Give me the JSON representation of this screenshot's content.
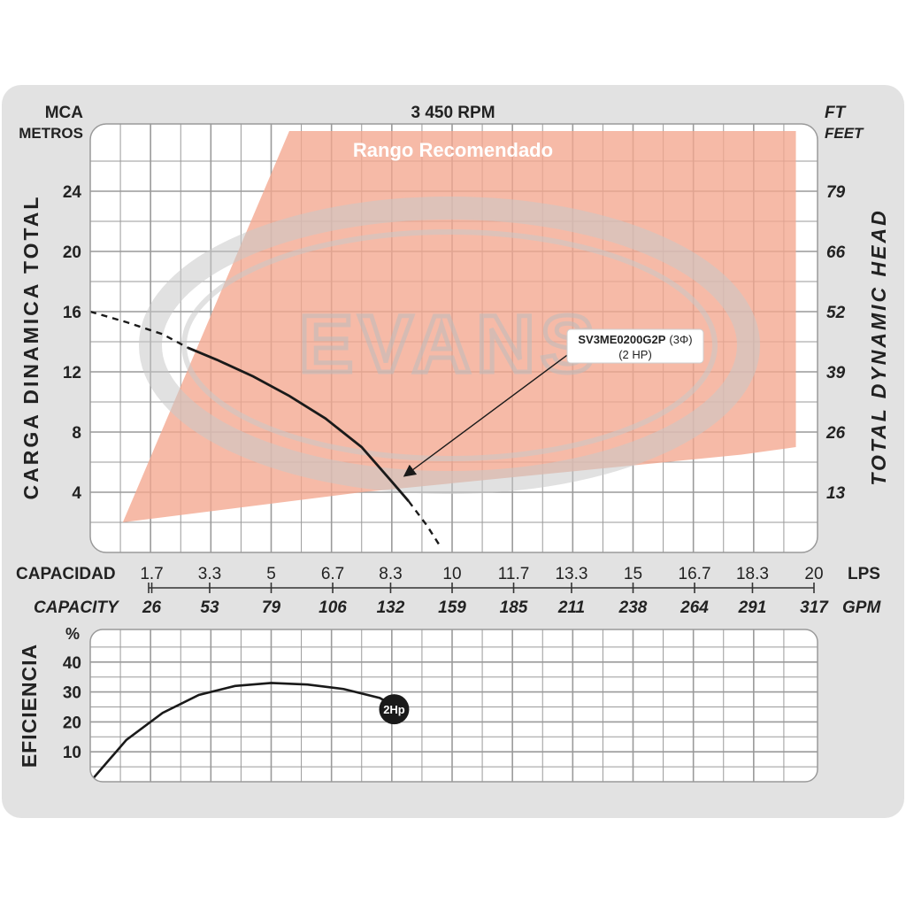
{
  "header": {
    "left_unit_top": "MCA",
    "left_unit_bottom": "METROS",
    "speed": "3 450 RPM",
    "right_unit_top": "FT",
    "right_unit_bottom": "FEET"
  },
  "watermark": "EVANS",
  "colors": {
    "recommended_range": "#f4a78e",
    "curve": "#1a1a1a",
    "grid": "#9a9a9a",
    "frame_bg": "#e2e2e2",
    "plot_bg": "#ffffff",
    "watermark": "#cfcfcf"
  },
  "chart_data": [
    {
      "type": "line",
      "title": "",
      "annotation_region": "Rango Recomendado",
      "ylabel_left": "CARGA DINAMICA TOTAL",
      "ylabel_right": "TOTAL DYNAMIC HEAD",
      "xlabel_top": "CAPACIDAD",
      "xlabel_bottom": "CAPACITY",
      "x_unit_top": "LPS",
      "x_unit_bottom": "GPM",
      "xlim": [
        0,
        20
      ],
      "ylim": [
        0,
        28
      ],
      "grid": true,
      "x_ticks_lps": [
        "1.7",
        "3.3",
        "5",
        "6.7",
        "8.3",
        "10",
        "11.7",
        "13.3",
        "15",
        "16.7",
        "18.3",
        "20"
      ],
      "x_ticks_gpm": [
        "26",
        "53",
        "79",
        "106",
        "132",
        "159",
        "185",
        "211",
        "238",
        "264",
        "291",
        "317"
      ],
      "y_ticks_left": [
        "4",
        "8",
        "12",
        "16",
        "20",
        "24"
      ],
      "y_ticks_right": [
        "13",
        "26",
        "39",
        "52",
        "66",
        "79"
      ],
      "series": [
        {
          "name": "SV3ME0200G2P",
          "name_suffix": "(3Φ)",
          "sublabel": "(2 HP)",
          "x": [
            0,
            1.0,
            2.0,
            2.7,
            3.5,
            4.5,
            5.5,
            6.5,
            7.5,
            8.3,
            8.8,
            9.3,
            9.7
          ],
          "y": [
            16,
            15.3,
            14.5,
            13.6,
            12.8,
            11.7,
            10.4,
            8.9,
            7.0,
            4.8,
            3.4,
            1.8,
            0.3
          ],
          "solid_from_x": 2.7,
          "solid_to_x": 8.8
        }
      ],
      "recommended_range": {
        "x": [
          0.9,
          5.5,
          19.5,
          19.5,
          18.0,
          7.5,
          0.9
        ],
        "y": [
          2.0,
          28,
          28,
          7.0,
          6.5,
          4.0,
          2.0
        ]
      }
    },
    {
      "type": "line",
      "title": "",
      "ylabel": "EFICIENCIA",
      "y_unit": "%",
      "xlim": [
        0,
        20
      ],
      "ylim": [
        0,
        50
      ],
      "grid": true,
      "y_ticks": [
        "10",
        "20",
        "30",
        "40"
      ],
      "series": [
        {
          "name": "2Hp",
          "x": [
            0,
            1,
            2,
            3,
            4,
            5,
            6,
            7,
            8,
            8.3
          ],
          "y": [
            0,
            14,
            23,
            29,
            32,
            33,
            32.5,
            31,
            28,
            26
          ]
        }
      ]
    }
  ]
}
